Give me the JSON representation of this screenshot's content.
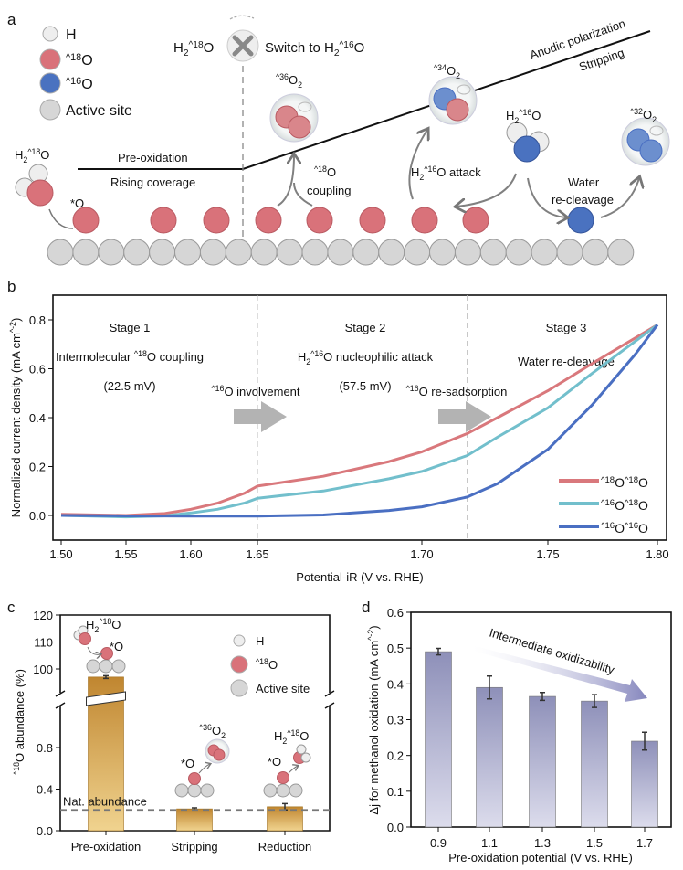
{
  "panel_labels": {
    "a": "a",
    "b": "b",
    "c": "c",
    "d": "d"
  },
  "schematic": {
    "legend": [
      {
        "label": [
          "H"
        ],
        "color": "#eeeeee"
      },
      {
        "label": [
          "^18",
          "O"
        ],
        "color": "#d9727a"
      },
      {
        "label": [
          "^16",
          "O"
        ],
        "color": "#4a72c0"
      },
      {
        "label": [
          "Active site"
        ],
        "color": "#d6d6d6"
      }
    ],
    "switch_from": [
      "H",
      "_2",
      "^18",
      "O"
    ],
    "switch_to": [
      "Switch to H",
      "_2",
      "^16",
      "O"
    ],
    "pre_oxidation": "Pre-oxidation",
    "rising_coverage": "Rising coverage",
    "anodic_polarization": "Anodic polarization",
    "stripping": "Stripping",
    "water_left": [
      "H",
      "_2",
      "^18",
      "O"
    ],
    "adsorbed_o": [
      "*O"
    ],
    "o2_36": [
      "^36",
      "O",
      "_2"
    ],
    "o2_34": [
      "^34",
      "O",
      "_2"
    ],
    "o2_32": [
      "^32",
      "O",
      "_2"
    ],
    "water_right": [
      "H",
      "_2",
      "^16",
      "O"
    ],
    "coupling_1": [
      "^18",
      "O"
    ],
    "coupling_2": "coupling",
    "attack": [
      "H",
      "_2",
      "^16",
      "O  attack"
    ],
    "recleavage_1": "Water",
    "recleavage_2": "re-cleavage"
  },
  "chart_data": [
    {
      "id": "b",
      "type": "line",
      "xlabel": "Potential-iR (V vs. RHE)",
      "ylabel": [
        "Normalized current density (mA cm",
        "^-2",
        ")"
      ],
      "xticks": [
        1.5,
        1.55,
        1.6,
        1.65,
        1.7,
        1.75,
        1.8
      ],
      "xtick_labels": [
        "1.50",
        "1.55",
        "1.60",
        "1.65",
        "1.70",
        "1.75",
        "1.80"
      ],
      "yticks": [
        0.0,
        0.2,
        0.4,
        0.6,
        0.8
      ],
      "ytick_labels": [
        "0.0",
        "0.2",
        "0.4",
        "0.6",
        "0.8"
      ],
      "ylim": [
        -0.1,
        0.9
      ],
      "xlim": [
        1.5,
        1.8
      ],
      "stage_boundaries": [
        1.65,
        1.718
      ],
      "stages": [
        {
          "title": "Stage 1",
          "desc": [
            "Intermolecular ",
            "^18",
            "O coupling"
          ],
          "value": "(22.5 mV)"
        },
        {
          "title": "Stage 2",
          "desc": [
            "H",
            "_2",
            "^16",
            "O nucleophilic attack"
          ],
          "value": "(57.5 mV)"
        },
        {
          "title": "Stage 3",
          "desc": [
            "Water re-cleavage"
          ],
          "value": ""
        }
      ],
      "annotations": [
        {
          "text": [
            "^16",
            "O involvement"
          ]
        },
        {
          "text": [
            "^16",
            "O re-sadsorption"
          ]
        }
      ],
      "legend_position": "bottom-right",
      "series": [
        {
          "name": [
            "^18",
            "O",
            "^18",
            "O"
          ],
          "color": "#d9787c",
          "x": [
            1.5,
            1.55,
            1.58,
            1.6,
            1.62,
            1.64,
            1.65,
            1.67,
            1.69,
            1.7,
            1.718,
            1.73,
            1.75,
            1.77,
            1.8
          ],
          "y": [
            0.005,
            0.0,
            0.008,
            0.025,
            0.05,
            0.09,
            0.12,
            0.16,
            0.22,
            0.26,
            0.335,
            0.4,
            0.51,
            0.62,
            0.78
          ]
        },
        {
          "name": [
            "^16",
            "O",
            "^18",
            "O"
          ],
          "color": "#72bfcc",
          "x": [
            1.5,
            1.55,
            1.58,
            1.6,
            1.62,
            1.64,
            1.65,
            1.67,
            1.69,
            1.7,
            1.718,
            1.73,
            1.75,
            1.77,
            1.8
          ],
          "y": [
            0.0,
            -0.006,
            -0.002,
            0.01,
            0.025,
            0.05,
            0.07,
            0.1,
            0.15,
            0.18,
            0.245,
            0.32,
            0.44,
            0.58,
            0.78
          ]
        },
        {
          "name": [
            "^16",
            "O",
            "^16",
            "O"
          ],
          "color": "#4a6fc2",
          "x": [
            1.5,
            1.55,
            1.6,
            1.65,
            1.67,
            1.69,
            1.7,
            1.718,
            1.73,
            1.75,
            1.77,
            1.79,
            1.8
          ],
          "y": [
            0.0,
            -0.002,
            -0.003,
            -0.003,
            0.002,
            0.02,
            0.035,
            0.075,
            0.13,
            0.27,
            0.45,
            0.66,
            0.78
          ]
        }
      ]
    },
    {
      "id": "c",
      "type": "bar",
      "ylabel": [
        "^18",
        "O abundance (%)"
      ],
      "categories": [
        "Pre-oxidation",
        "Stripping",
        "Reduction"
      ],
      "values": [
        97.0,
        0.21,
        0.23
      ],
      "errors": [
        0.5,
        0.01,
        0.03
      ],
      "y_break": true,
      "ylim_lower": [
        0.0,
        1.2
      ],
      "ylim_upper": [
        90,
        120
      ],
      "yticks_lower": [
        0.0,
        0.4,
        0.8
      ],
      "ytick_labels_lower": [
        "0.0",
        "0.4",
        "0.8"
      ],
      "yticks_upper": [
        100,
        110,
        120
      ],
      "ytick_labels_upper": [
        "100",
        "110",
        "120"
      ],
      "reference_line": {
        "value": 0.2,
        "label": "Nat. abundance"
      },
      "insets": {
        "pre_water": [
          "H",
          "_2",
          "^18",
          "O"
        ],
        "pre_o": [
          "*O"
        ],
        "strip_o2": [
          "^36",
          "O",
          "_2"
        ],
        "strip_o": [
          "*O"
        ],
        "red_water": [
          "H",
          "_2",
          "^18",
          "O"
        ],
        "red_o": [
          "*O"
        ]
      },
      "legend": [
        {
          "label": [
            "H"
          ],
          "color": "#eeeeee"
        },
        {
          "label": [
            "^18",
            "O"
          ],
          "color": "#d9727a"
        },
        {
          "label": [
            "Active site"
          ],
          "color": "#d6d6d6"
        }
      ]
    },
    {
      "id": "d",
      "type": "bar",
      "xlabel": "Pre-oxidation potential (V vs. RHE)",
      "ylabel": [
        "Δ",
        "j",
        " for methanol oxidation (mA cm",
        "^-2",
        ")"
      ],
      "categories": [
        "0.9",
        "1.1",
        "1.3",
        "1.5",
        "1.7"
      ],
      "values": [
        0.49,
        0.39,
        0.365,
        0.352,
        0.24
      ],
      "errors": [
        0.009,
        0.032,
        0.011,
        0.018,
        0.025
      ],
      "ylim": [
        0.0,
        0.6
      ],
      "yticks": [
        0.0,
        0.1,
        0.2,
        0.3,
        0.4,
        0.5,
        0.6
      ],
      "ytick_labels": [
        "0.0",
        "0.1",
        "0.2",
        "0.3",
        "0.4",
        "0.5",
        "0.6"
      ],
      "annotation": "Intermediate oxidizability"
    }
  ]
}
